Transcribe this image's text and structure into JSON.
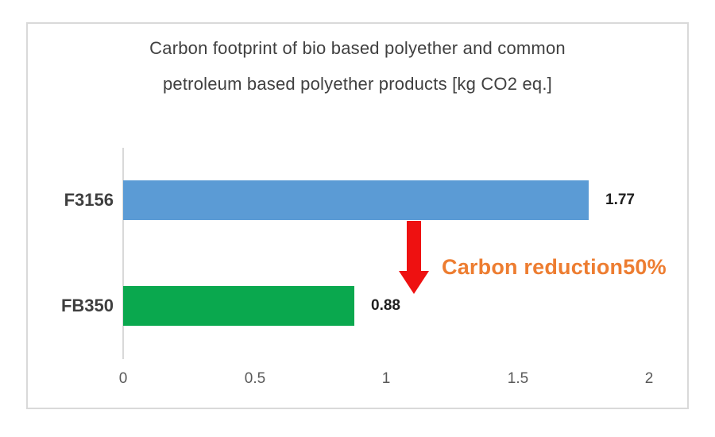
{
  "chart_data": {
    "type": "bar",
    "orientation": "horizontal",
    "title_line1": "Carbon footprint of bio based polyether and common",
    "title_line2": "petroleum based polyether products [kg CO2 eq.]",
    "categories": [
      "F3156",
      "FB350"
    ],
    "values": [
      1.77,
      0.88
    ],
    "value_labels": [
      "1.77",
      "0.88"
    ],
    "series": [
      {
        "name": "Carbon footprint",
        "values": [
          1.77,
          0.88
        ]
      }
    ],
    "bar_colors": [
      "#5b9bd5",
      "#0aa84e"
    ],
    "xlim": [
      0,
      2
    ],
    "x_ticks": [
      "0",
      "0.5",
      "1",
      "1.5",
      "2"
    ],
    "x_tick_values": [
      0,
      0.5,
      1,
      1.5,
      2
    ],
    "ylabel": "",
    "xlabel": "",
    "grid": false,
    "legend": "none",
    "annotation": {
      "text": "Carbon reduction50%",
      "text_color": "#ed7d31",
      "arrow_color": "#ee1111",
      "arrow_direction": "down"
    }
  },
  "colors": {
    "title": "#404040",
    "category_label": "#3f3f3f",
    "value_label": "#1f1f1f",
    "tick_label": "#595959",
    "axis_line": "#d9d9d9",
    "frame_border": "#d9d9d9",
    "background": "#ffffff"
  }
}
